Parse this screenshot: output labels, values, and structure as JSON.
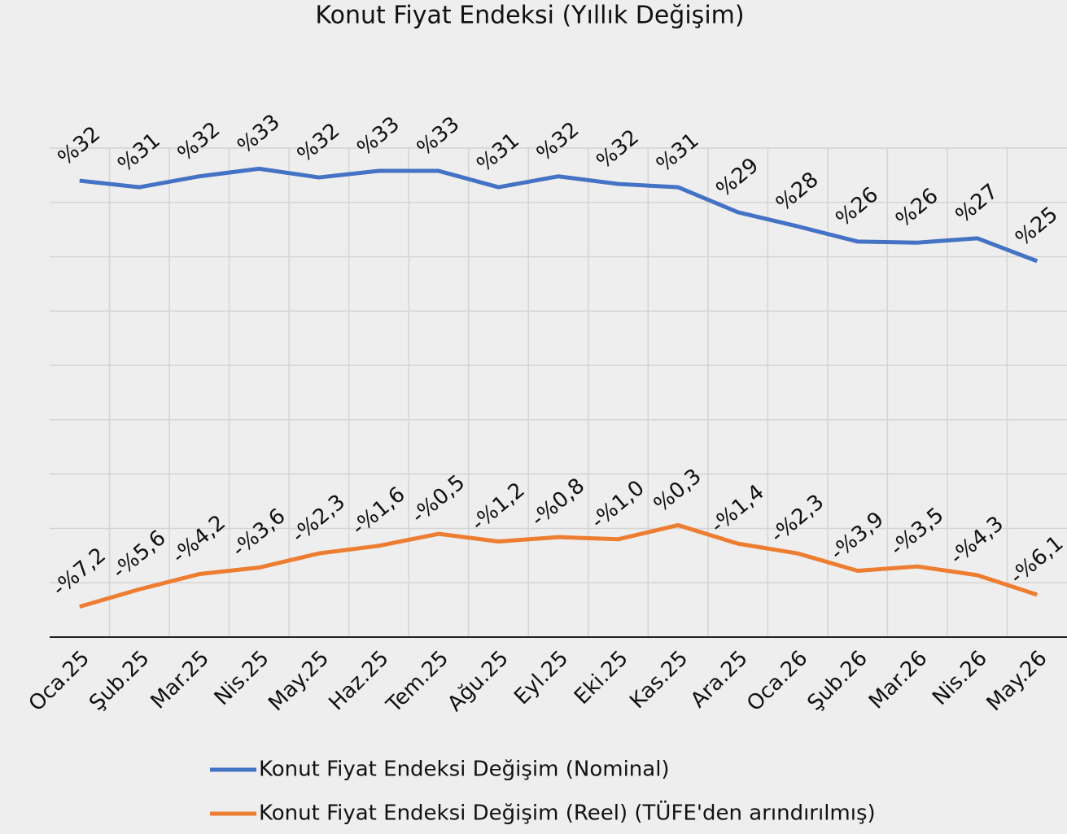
{
  "chart_data": {
    "type": "line",
    "title": "Konut Fiyat Endeksi (Yıllık Değişim)",
    "categories": [
      "Oca.25",
      "Şub.25",
      "Mar.25",
      "Nis.25",
      "May.25",
      "Haz.25",
      "Tem.25",
      "Ağu.25",
      "Eyl.25",
      "Eki.25",
      "Kas.25",
      "Ara.25",
      "Oca.26",
      "Şub.26",
      "Mar.26",
      "Nis.26",
      "May.26"
    ],
    "series": [
      {
        "name": "Konut Fiyat Endeksi Değişim (Nominal)",
        "color": "#4472c4",
        "values": [
          32.0,
          31.4,
          32.4,
          33.1,
          32.3,
          32.9,
          32.9,
          31.4,
          32.4,
          31.7,
          31.4,
          29.1,
          27.8,
          26.4,
          26.3,
          26.7,
          24.6
        ],
        "value_labels": [
          "%32",
          "%31",
          "%32",
          "%33",
          "%32",
          "%33",
          "%33",
          "%31",
          "%32",
          "%32",
          "%31",
          "%29",
          "%28",
          "%26",
          "%26",
          "%27",
          "%25"
        ]
      },
      {
        "name": "Konut Fiyat Endeksi Değişim (Reel) (TÜFE'den arındırılmış)",
        "color": "#ed7d31",
        "values": [
          -7.2,
          -5.6,
          -4.2,
          -3.6,
          -2.3,
          -1.6,
          -0.5,
          -1.2,
          -0.8,
          -1.0,
          0.3,
          -1.4,
          -2.3,
          -3.9,
          -3.5,
          -4.3,
          -6.1
        ],
        "value_labels": [
          "-%7,2",
          "-%5,6",
          "-%4,2",
          "-%3,6",
          "-%2,3",
          "-%1,6",
          "-%0,5",
          "-%1,2",
          "-%0,8",
          "-%1,0",
          "%0,3",
          "-%1,4",
          "-%2,3",
          "-%3,9",
          "-%3,5",
          "-%4,3",
          "-%6,1"
        ]
      }
    ],
    "ylim": [
      -10,
      35
    ],
    "yticks": [
      -10,
      -5,
      0,
      5,
      10,
      15,
      20,
      25,
      30,
      35
    ],
    "grid": true
  }
}
